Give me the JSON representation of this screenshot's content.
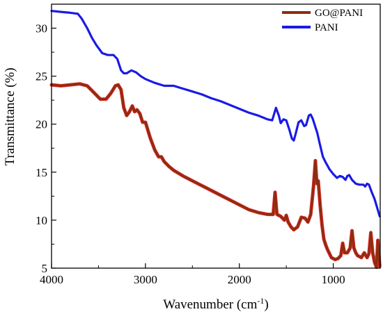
{
  "chart_data": {
    "type": "line",
    "xlabel": "Wavenumber (cm",
    "xlabel_sup": "-1",
    "xlabel_end": ")",
    "ylabel": "Transmittance (%)",
    "xlim": [
      4000,
      500
    ],
    "ylim": [
      5,
      32.5
    ],
    "x_reversed": true,
    "x_ticks": [
      4000,
      3000,
      2000,
      1000
    ],
    "y_ticks": [
      5,
      10,
      15,
      20,
      25,
      30
    ],
    "grid": false,
    "legend_position": "top-right",
    "series": [
      {
        "name": "GO@PANI",
        "color": "#8B2E0F",
        "highlight_color": "#E8121A",
        "points": [
          [
            4000,
            24.1
          ],
          [
            3900,
            24.0
          ],
          [
            3800,
            24.1
          ],
          [
            3700,
            24.2
          ],
          [
            3620,
            24.0
          ],
          [
            3550,
            23.3
          ],
          [
            3480,
            22.6
          ],
          [
            3420,
            22.6
          ],
          [
            3370,
            23.2
          ],
          [
            3320,
            24.0
          ],
          [
            3290,
            24.1
          ],
          [
            3260,
            23.6
          ],
          [
            3230,
            21.7
          ],
          [
            3200,
            20.9
          ],
          [
            3170,
            21.3
          ],
          [
            3140,
            21.9
          ],
          [
            3115,
            21.3
          ],
          [
            3090,
            21.5
          ],
          [
            3060,
            21.1
          ],
          [
            3030,
            20.2
          ],
          [
            3000,
            20.2
          ],
          [
            2950,
            18.6
          ],
          [
            2900,
            17.3
          ],
          [
            2860,
            16.6
          ],
          [
            2830,
            16.6
          ],
          [
            2800,
            16.1
          ],
          [
            2750,
            15.6
          ],
          [
            2700,
            15.2
          ],
          [
            2600,
            14.6
          ],
          [
            2500,
            14.1
          ],
          [
            2400,
            13.6
          ],
          [
            2300,
            13.1
          ],
          [
            2200,
            12.6
          ],
          [
            2100,
            12.1
          ],
          [
            2000,
            11.6
          ],
          [
            1900,
            11.1
          ],
          [
            1800,
            10.8
          ],
          [
            1700,
            10.6
          ],
          [
            1640,
            10.6
          ],
          [
            1620,
            12.9
          ],
          [
            1600,
            10.6
          ],
          [
            1560,
            10.4
          ],
          [
            1520,
            10.0
          ],
          [
            1500,
            10.5
          ],
          [
            1480,
            9.8
          ],
          [
            1450,
            9.3
          ],
          [
            1420,
            9.0
          ],
          [
            1380,
            9.3
          ],
          [
            1340,
            10.3
          ],
          [
            1300,
            10.2
          ],
          [
            1270,
            9.8
          ],
          [
            1240,
            10.6
          ],
          [
            1210,
            13.6
          ],
          [
            1190,
            16.2
          ],
          [
            1175,
            13.8
          ],
          [
            1160,
            14.1
          ],
          [
            1140,
            11.6
          ],
          [
            1120,
            9.5
          ],
          [
            1100,
            8.0
          ],
          [
            1080,
            7.4
          ],
          [
            1060,
            6.9
          ],
          [
            1020,
            6.1
          ],
          [
            980,
            5.9
          ],
          [
            950,
            6.0
          ],
          [
            920,
            6.3
          ],
          [
            900,
            7.6
          ],
          [
            880,
            6.6
          ],
          [
            850,
            6.6
          ],
          [
            820,
            7.1
          ],
          [
            800,
            8.9
          ],
          [
            780,
            7.1
          ],
          [
            760,
            6.6
          ],
          [
            740,
            6.3
          ],
          [
            700,
            6.1
          ],
          [
            670,
            6.6
          ],
          [
            640,
            6.1
          ],
          [
            620,
            6.5
          ],
          [
            600,
            8.7
          ],
          [
            580,
            6.6
          ],
          [
            560,
            5.6
          ],
          [
            540,
            5.1
          ],
          [
            525,
            7.9
          ],
          [
            505,
            5.2
          ]
        ]
      },
      {
        "name": "PANI",
        "color": "#1A1AE6",
        "points": [
          [
            4000,
            31.8
          ],
          [
            3900,
            31.7
          ],
          [
            3800,
            31.6
          ],
          [
            3720,
            31.5
          ],
          [
            3680,
            31.0
          ],
          [
            3620,
            30.0
          ],
          [
            3570,
            29.0
          ],
          [
            3520,
            28.2
          ],
          [
            3460,
            27.4
          ],
          [
            3400,
            27.2
          ],
          [
            3340,
            27.2
          ],
          [
            3300,
            26.8
          ],
          [
            3260,
            25.6
          ],
          [
            3230,
            25.3
          ],
          [
            3200,
            25.3
          ],
          [
            3150,
            25.6
          ],
          [
            3100,
            25.4
          ],
          [
            3050,
            25.0
          ],
          [
            3000,
            24.7
          ],
          [
            2900,
            24.3
          ],
          [
            2800,
            24.0
          ],
          [
            2700,
            24.0
          ],
          [
            2600,
            23.7
          ],
          [
            2500,
            23.4
          ],
          [
            2400,
            23.1
          ],
          [
            2300,
            22.7
          ],
          [
            2200,
            22.4
          ],
          [
            2100,
            22.0
          ],
          [
            2000,
            21.6
          ],
          [
            1900,
            21.2
          ],
          [
            1800,
            20.9
          ],
          [
            1700,
            20.5
          ],
          [
            1650,
            20.4
          ],
          [
            1610,
            21.7
          ],
          [
            1580,
            20.9
          ],
          [
            1560,
            20.1
          ],
          [
            1530,
            20.5
          ],
          [
            1500,
            20.4
          ],
          [
            1470,
            19.5
          ],
          [
            1440,
            18.5
          ],
          [
            1420,
            18.3
          ],
          [
            1400,
            19.0
          ],
          [
            1370,
            20.2
          ],
          [
            1340,
            20.4
          ],
          [
            1310,
            19.8
          ],
          [
            1290,
            19.9
          ],
          [
            1260,
            20.9
          ],
          [
            1240,
            21.0
          ],
          [
            1220,
            20.6
          ],
          [
            1200,
            20.0
          ],
          [
            1170,
            19.1
          ],
          [
            1140,
            17.8
          ],
          [
            1110,
            16.6
          ],
          [
            1080,
            16.0
          ],
          [
            1040,
            15.3
          ],
          [
            1000,
            14.8
          ],
          [
            960,
            14.4
          ],
          [
            930,
            14.6
          ],
          [
            900,
            14.5
          ],
          [
            870,
            14.2
          ],
          [
            850,
            14.6
          ],
          [
            830,
            14.7
          ],
          [
            800,
            14.2
          ],
          [
            760,
            13.8
          ],
          [
            720,
            13.7
          ],
          [
            680,
            13.7
          ],
          [
            660,
            13.5
          ],
          [
            640,
            13.8
          ],
          [
            620,
            13.7
          ],
          [
            590,
            12.9
          ],
          [
            560,
            12.2
          ],
          [
            530,
            11.2
          ],
          [
            505,
            10.4
          ]
        ]
      }
    ]
  }
}
